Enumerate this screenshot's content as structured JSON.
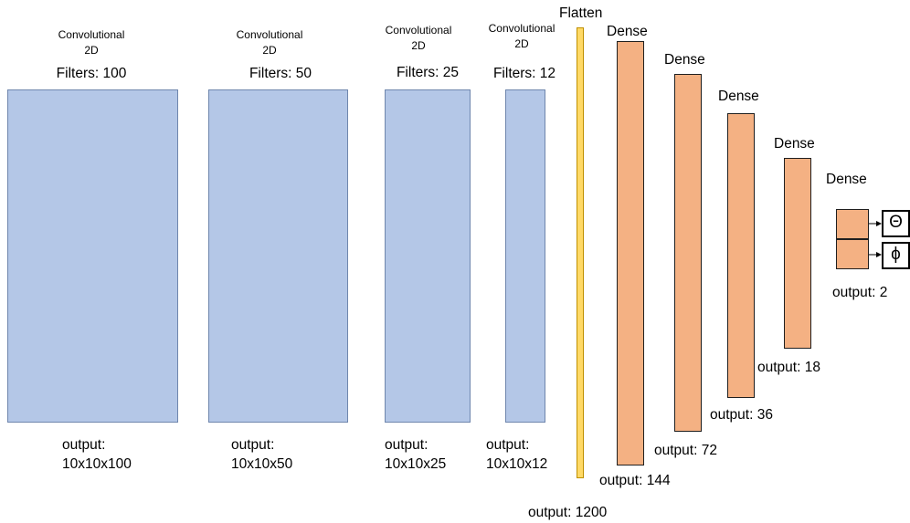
{
  "conv_layers": [
    {
      "type_line1": "Convolutional",
      "type_line2": "2D",
      "filters": "Filters: 100",
      "output_label": "output:",
      "output_shape": "10x10x100"
    },
    {
      "type_line1": "Convolutional",
      "type_line2": "2D",
      "filters": "Filters: 50",
      "output_label": "output:",
      "output_shape": "10x10x50"
    },
    {
      "type_line1": "Convolutional",
      "type_line2": "2D",
      "filters": "Filters: 25",
      "output_label": "output:",
      "output_shape": "10x10x25"
    },
    {
      "type_line1": "Convolutional",
      "type_line2": "2D",
      "filters": "Filters: 12",
      "output_label": "output:",
      "output_shape": "10x10x12"
    }
  ],
  "flatten": {
    "title": "Flatten",
    "output": "output: 1200"
  },
  "dense_layers": [
    {
      "title": "Dense",
      "output": "output: 144"
    },
    {
      "title": "Dense",
      "output": "output: 72"
    },
    {
      "title": "Dense",
      "output": "output: 36"
    },
    {
      "title": "Dense",
      "output": "output: 18"
    },
    {
      "title": "Dense",
      "output": "output: 2"
    }
  ],
  "outputs": {
    "theta": "Θ",
    "phi": "ϕ"
  },
  "colors": {
    "conv": "#b4c7e7",
    "dense": "#f4b183",
    "flatten": "#ffd966"
  }
}
